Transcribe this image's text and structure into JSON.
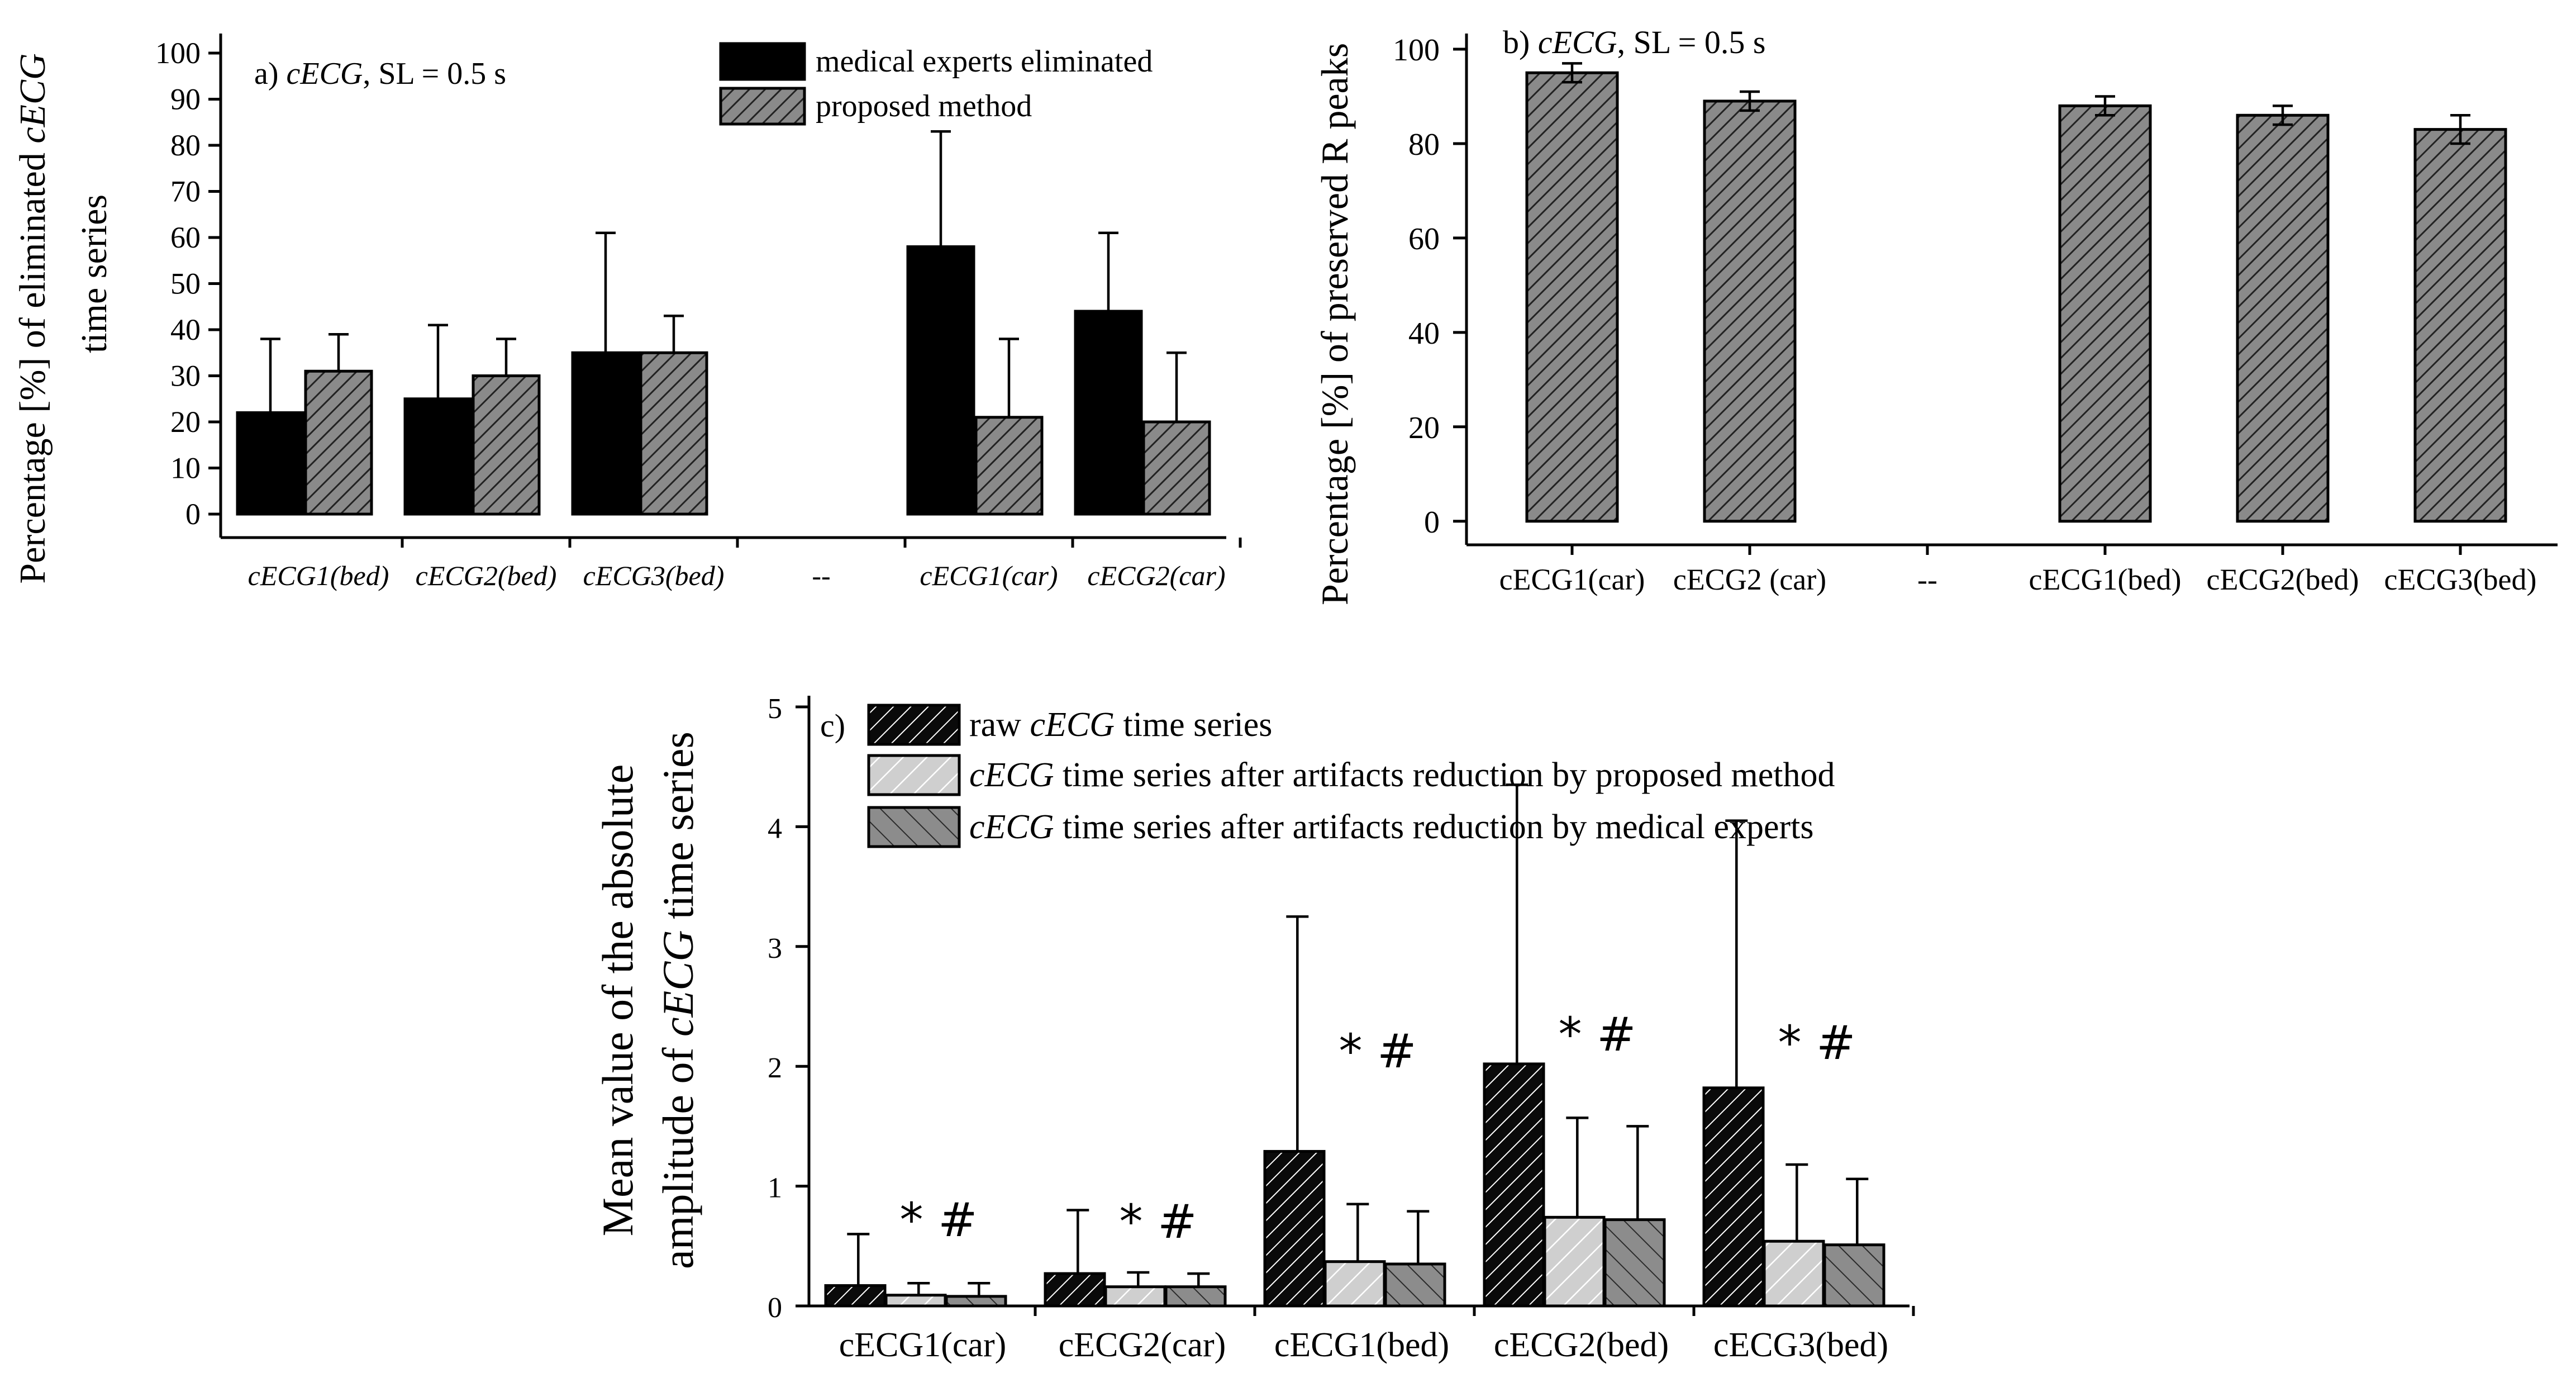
{
  "chart_data": [
    {
      "id": "a",
      "type": "bar",
      "panel_label": "a)",
      "title_italic": "cECG",
      "title_rest": ", SL = 0.5 s",
      "ylabel_line1_plain": "Percentage [%] of eliminated ",
      "ylabel_line1_italic": "cECG",
      "ylabel_line2": "time series",
      "xlabel": "",
      "ylim": [
        0,
        100
      ],
      "yticks": [
        "0",
        "10",
        "20",
        "30",
        "40",
        "50",
        "60",
        "70",
        "80",
        "90",
        "100"
      ],
      "categories": [
        "cECG1(bed)",
        "cECG2(bed)",
        "cECG3(bed)",
        "--",
        "cECG1(car)",
        "cECG2(car)"
      ],
      "legend": [
        "medical experts eliminated",
        "proposed method"
      ],
      "series": [
        {
          "name": "medical experts eliminated",
          "color": "#000000",
          "pattern": "solid",
          "values": [
            22,
            25,
            35,
            null,
            58,
            44
          ],
          "err": [
            16,
            16,
            26,
            null,
            25,
            17
          ]
        },
        {
          "name": "proposed method",
          "color": "#8a8a8a",
          "pattern": "hatch",
          "values": [
            31,
            30,
            35,
            null,
            21,
            20
          ],
          "err": [
            8,
            8,
            8,
            null,
            17,
            15
          ]
        }
      ]
    },
    {
      "id": "b",
      "type": "bar",
      "panel_label": "b)",
      "title_italic": "cECG",
      "title_rest": ", SL =  0.5 s",
      "ylabel": "Percentage [%] of preserved R peaks",
      "xlabel": "",
      "ylim": [
        -5,
        100
      ],
      "yticks": [
        "0",
        "20",
        "40",
        "60",
        "80",
        "100"
      ],
      "categories": [
        "cECG1(car)",
        "cECG2 (car)",
        "--",
        "cECG1(bed)",
        "cECG2(bed)",
        "cECG3(bed)"
      ],
      "series": [
        {
          "name": "preserved R peaks",
          "color": "#8a8a8a",
          "pattern": "hatch",
          "values": [
            95,
            89,
            null,
            88,
            86,
            83
          ],
          "err": [
            2,
            2,
            null,
            2,
            2,
            3
          ]
        }
      ]
    },
    {
      "id": "c",
      "type": "bar",
      "panel_label": "c)",
      "ylabel_line1": "Mean value of the absolute",
      "ylabel_line2_plain": "amplitude of ",
      "ylabel_line2_italic": "cECG",
      "ylabel_line2_rest": " time series",
      "xlabel": "",
      "ylim": [
        0,
        5
      ],
      "yticks": [
        "0",
        "1",
        "2",
        "3",
        "4",
        "5"
      ],
      "categories": [
        "cECG1(car)",
        "cECG2(car)",
        "cECG1(bed)",
        "cECG2(bed)",
        "cECG3(bed)"
      ],
      "legend": [
        {
          "prefix": "raw ",
          "italic": "cECG",
          "suffix": " time series"
        },
        {
          "prefix": "",
          "italic": "cECG",
          "suffix": " time series after artifacts reduction by proposed method"
        },
        {
          "prefix": "",
          "italic": "cECG",
          "suffix": " time series after artifacts reduction by medical experts"
        }
      ],
      "series": [
        {
          "name": "raw cECG time series",
          "color": "#111111",
          "pattern": "hatch-dark",
          "values": [
            0.17,
            0.27,
            1.29,
            2.02,
            1.82
          ],
          "err": [
            0.43,
            0.53,
            1.96,
            2.33,
            2.23
          ]
        },
        {
          "name": "after artifacts reduction by proposed method",
          "color": "#cccccc",
          "pattern": "hatch-light",
          "values": [
            0.09,
            0.16,
            0.37,
            0.74,
            0.54
          ],
          "err": [
            0.1,
            0.12,
            0.48,
            0.83,
            0.64
          ]
        },
        {
          "name": "after artifacts reduction by medical experts",
          "color": "#8c8c8c",
          "pattern": "hatch-mid",
          "values": [
            0.08,
            0.16,
            0.35,
            0.72,
            0.51
          ],
          "err": [
            0.11,
            0.11,
            0.44,
            0.78,
            0.55
          ]
        }
      ],
      "annotations": [
        "* #",
        "* #",
        "* #",
        "* #",
        "* #"
      ]
    }
  ]
}
